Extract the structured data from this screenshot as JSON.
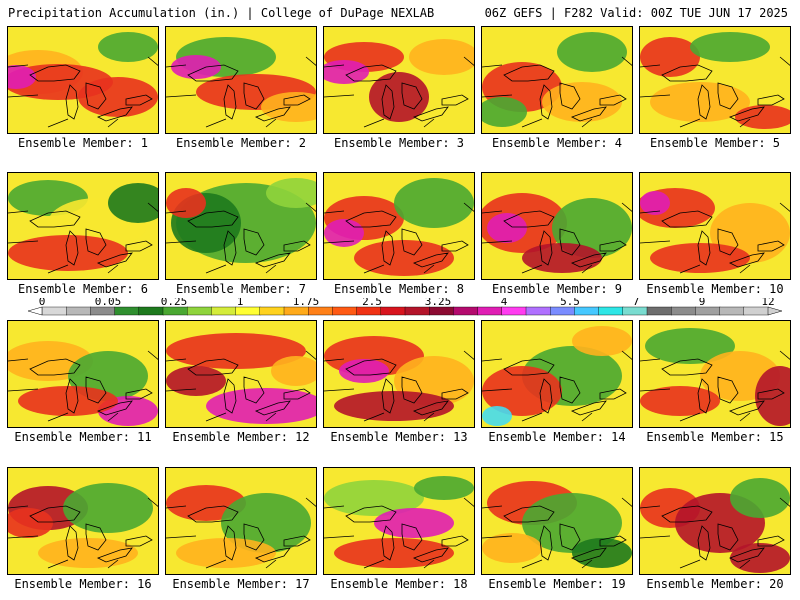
{
  "header": {
    "left_title": "Precipitation Accumulation (in.) | College of DuPage NEXLAB",
    "right_title": "06Z GEFS | F282 Valid: 00Z TUE JUN 17 2025"
  },
  "colorbar": {
    "labels": [
      "0",
      "0.05",
      "0.25",
      "1",
      "1.75",
      "2.5",
      "3.25",
      "4",
      "5.5",
      "7",
      "9",
      "12"
    ],
    "colors": [
      "#d8d8d8",
      "#b8b8b8",
      "#8c8c8c",
      "#2f8f2f",
      "#1e7a1e",
      "#4aa832",
      "#8fd43c",
      "#d4ec3a",
      "#ffff33",
      "#ffd21e",
      "#ffaa1a",
      "#ff8018",
      "#ff5a14",
      "#f03214",
      "#d8141e",
      "#b4142a",
      "#8c0a32",
      "#b40a6e",
      "#e01eb4",
      "#ff3cf0",
      "#b070ff",
      "#7a8cff",
      "#46c8ff",
      "#2ee6e6",
      "#7adcd0",
      "#6e6e6e",
      "#8c8c8c",
      "#a0a0a0",
      "#b8b8b8",
      "#d0d0d0"
    ]
  },
  "members": [
    {
      "label": "Ensemble Member: 1"
    },
    {
      "label": "Ensemble Member: 2"
    },
    {
      "label": "Ensemble Member: 3"
    },
    {
      "label": "Ensemble Member: 4"
    },
    {
      "label": "Ensemble Member: 5"
    },
    {
      "label": "Ensemble Member: 6"
    },
    {
      "label": "Ensemble Member: 7"
    },
    {
      "label": "Ensemble Member: 8"
    },
    {
      "label": "Ensemble Member: 9"
    },
    {
      "label": "Ensemble Member: 10"
    },
    {
      "label": "Ensemble Member: 11"
    },
    {
      "label": "Ensemble Member: 12"
    },
    {
      "label": "Ensemble Member: 13"
    },
    {
      "label": "Ensemble Member: 14"
    },
    {
      "label": "Ensemble Member: 15"
    },
    {
      "label": "Ensemble Member: 16"
    },
    {
      "label": "Ensemble Member: 17"
    },
    {
      "label": "Ensemble Member: 18"
    },
    {
      "label": "Ensemble Member: 19"
    },
    {
      "label": "Ensemble Member: 20"
    }
  ],
  "palette": {
    "yellow": "#f7e830",
    "orange": "#ffb21e",
    "red": "#e8321e",
    "darkred": "#b4142a",
    "green": "#4aa832",
    "lightgreen": "#8fd43c",
    "darkgreen": "#1e7a1e",
    "magenta": "#e01eb4",
    "cyan": "#46dcf0"
  }
}
